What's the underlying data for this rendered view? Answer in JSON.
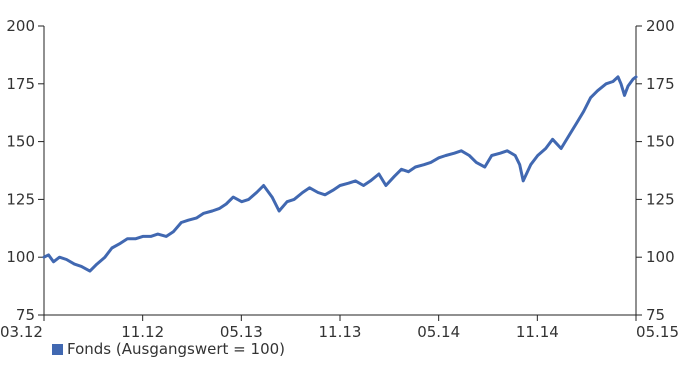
{
  "chart_data": {
    "type": "line",
    "x_ticks": [
      "03.12",
      "11.12",
      "05.13",
      "11.13",
      "05.14",
      "11.14",
      "05.15"
    ],
    "y_ticks": [
      75,
      100,
      125,
      150,
      175,
      200
    ],
    "ylim": [
      75,
      200
    ],
    "xlim": [
      "2012-03",
      "2015-05"
    ],
    "grid": false,
    "legend_position": "bottom-left",
    "series": [
      {
        "name": "Fonds (Ausgangswert = 100)",
        "color": "#4168b1",
        "points": [
          [
            "2012-03-01",
            100
          ],
          [
            "2012-03-10",
            101
          ],
          [
            "2012-03-20",
            98
          ],
          [
            "2012-04-01",
            100
          ],
          [
            "2012-04-15",
            99
          ],
          [
            "2012-05-01",
            97
          ],
          [
            "2012-05-15",
            96
          ],
          [
            "2012-06-01",
            94
          ],
          [
            "2012-06-15",
            97
          ],
          [
            "2012-07-01",
            100
          ],
          [
            "2012-07-15",
            104
          ],
          [
            "2012-08-01",
            106
          ],
          [
            "2012-08-15",
            108
          ],
          [
            "2012-09-01",
            108
          ],
          [
            "2012-09-15",
            109
          ],
          [
            "2012-10-01",
            109
          ],
          [
            "2012-10-15",
            110
          ],
          [
            "2012-11-01",
            109
          ],
          [
            "2012-11-15",
            111
          ],
          [
            "2012-12-01",
            115
          ],
          [
            "2012-12-15",
            116
          ],
          [
            "2013-01-01",
            117
          ],
          [
            "2013-01-15",
            119
          ],
          [
            "2013-02-01",
            120
          ],
          [
            "2013-02-15",
            121
          ],
          [
            "2013-03-01",
            123
          ],
          [
            "2013-03-15",
            126
          ],
          [
            "2013-04-01",
            124
          ],
          [
            "2013-04-15",
            125
          ],
          [
            "2013-05-01",
            128
          ],
          [
            "2013-05-15",
            131
          ],
          [
            "2013-06-01",
            126
          ],
          [
            "2013-06-15",
            120
          ],
          [
            "2013-07-01",
            124
          ],
          [
            "2013-07-15",
            125
          ],
          [
            "2013-08-01",
            128
          ],
          [
            "2013-08-15",
            130
          ],
          [
            "2013-09-01",
            128
          ],
          [
            "2013-09-15",
            127
          ],
          [
            "2013-10-01",
            129
          ],
          [
            "2013-10-15",
            131
          ],
          [
            "2013-11-01",
            132
          ],
          [
            "2013-11-15",
            133
          ],
          [
            "2013-12-01",
            131
          ],
          [
            "2013-12-15",
            133
          ],
          [
            "2014-01-01",
            136
          ],
          [
            "2014-01-15",
            131
          ],
          [
            "2014-02-01",
            135
          ],
          [
            "2014-02-15",
            138
          ],
          [
            "2014-03-01",
            137
          ],
          [
            "2014-03-15",
            139
          ],
          [
            "2014-04-01",
            140
          ],
          [
            "2014-04-15",
            141
          ],
          [
            "2014-05-01",
            143
          ],
          [
            "2014-05-15",
            144
          ],
          [
            "2014-06-01",
            145
          ],
          [
            "2014-06-15",
            146
          ],
          [
            "2014-07-01",
            144
          ],
          [
            "2014-07-15",
            141
          ],
          [
            "2014-08-01",
            139
          ],
          [
            "2014-08-15",
            144
          ],
          [
            "2014-09-01",
            145
          ],
          [
            "2014-09-15",
            146
          ],
          [
            "2014-10-01",
            144
          ],
          [
            "2014-10-10",
            140
          ],
          [
            "2014-10-17",
            133
          ],
          [
            "2014-11-01",
            140
          ],
          [
            "2014-11-15",
            144
          ],
          [
            "2014-12-01",
            147
          ],
          [
            "2014-12-15",
            151
          ],
          [
            "2015-01-01",
            147
          ],
          [
            "2015-01-15",
            152
          ],
          [
            "2015-02-01",
            158
          ],
          [
            "2015-02-15",
            163
          ],
          [
            "2015-03-01",
            169
          ],
          [
            "2015-03-15",
            172
          ],
          [
            "2015-04-01",
            175
          ],
          [
            "2015-04-15",
            176
          ],
          [
            "2015-04-25",
            178
          ],
          [
            "2015-05-01",
            175
          ],
          [
            "2015-05-08",
            170
          ],
          [
            "2015-05-15",
            174
          ],
          [
            "2015-05-25",
            177
          ],
          [
            "2015-05-31",
            178
          ]
        ]
      }
    ]
  },
  "legend": {
    "label": "Fonds (Ausgangswert = 100)",
    "color": "#4168b1"
  }
}
